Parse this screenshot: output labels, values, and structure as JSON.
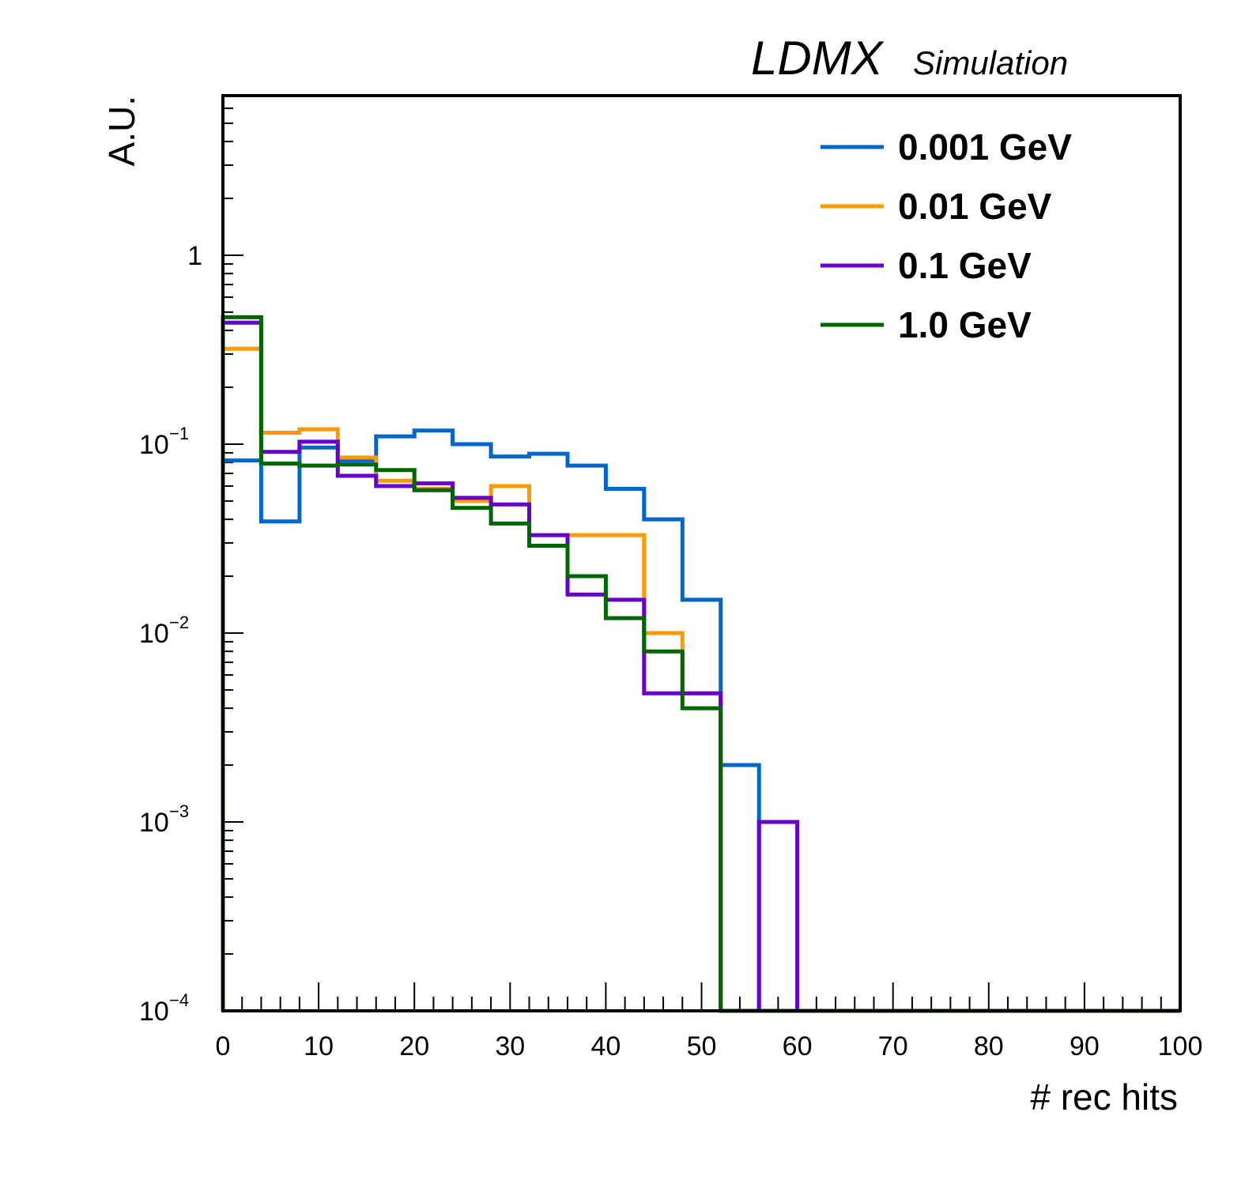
{
  "chart_data": {
    "type": "histogram",
    "header": {
      "main": "LDMX",
      "sub": "Simulation"
    },
    "xlabel": "# rec hits",
    "ylabel": "A.U.",
    "xlim": [
      0,
      100
    ],
    "ylim": [
      0.0001,
      7
    ],
    "y_scale": "log",
    "x_ticks": [
      "0",
      "10",
      "20",
      "30",
      "40",
      "50",
      "60",
      "70",
      "80",
      "90",
      "100"
    ],
    "y_ticks": [
      {
        "base": "1",
        "exp": ""
      },
      {
        "base": "10",
        "exp": "−1"
      },
      {
        "base": "10",
        "exp": "−2"
      },
      {
        "base": "10",
        "exp": "−3"
      },
      {
        "base": "10",
        "exp": "−4"
      }
    ],
    "grid": false,
    "legend_position": "top-right",
    "bin_edges": [
      0,
      4,
      8,
      12,
      16,
      20,
      24,
      28,
      32,
      36,
      40,
      44,
      48,
      52,
      56,
      60,
      64,
      68,
      72,
      76,
      80,
      84,
      88,
      92,
      96,
      100
    ],
    "series": [
      {
        "name": "0.001 GeV",
        "color": "#0066cc",
        "values": [
          0.082,
          0.039,
          0.096,
          0.082,
          0.11,
          0.118,
          0.1,
          0.086,
          0.089,
          0.077,
          0.058,
          0.04,
          0.015,
          0.002,
          0,
          0,
          0,
          0,
          0,
          0,
          0,
          0,
          0,
          0,
          0
        ]
      },
      {
        "name": "0.01 GeV",
        "color": "#ff9900",
        "values": [
          0.32,
          0.115,
          0.12,
          0.085,
          0.064,
          0.058,
          0.05,
          0.06,
          0.033,
          0.033,
          0.033,
          0.01,
          0.0048,
          0,
          0,
          0,
          0,
          0,
          0,
          0,
          0,
          0,
          0,
          0,
          0
        ]
      },
      {
        "name": "0.1 GeV",
        "color": "#6600cc",
        "values": [
          0.44,
          0.091,
          0.103,
          0.068,
          0.06,
          0.062,
          0.052,
          0.048,
          0.033,
          0.016,
          0.015,
          0.0048,
          0.0048,
          0,
          0.001,
          0,
          0,
          0,
          0,
          0,
          0,
          0,
          0,
          0,
          0
        ]
      },
      {
        "name": "1.0 GeV",
        "color": "#006600",
        "values": [
          0.47,
          0.079,
          0.077,
          0.078,
          0.073,
          0.057,
          0.046,
          0.038,
          0.029,
          0.02,
          0.012,
          0.008,
          0.004,
          0,
          0,
          0,
          0,
          0,
          0,
          0,
          0,
          0,
          0,
          0,
          0
        ]
      }
    ]
  }
}
